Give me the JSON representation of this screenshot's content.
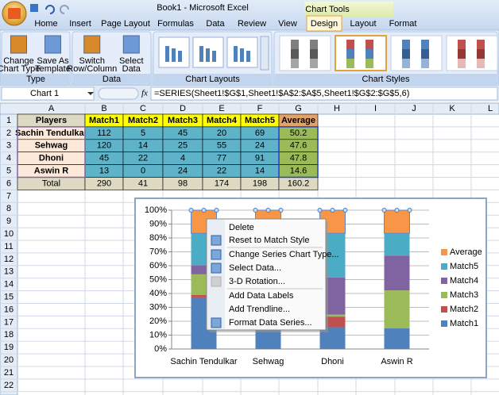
{
  "title_bar": {
    "title": "Book1 - Microsoft Excel",
    "context_tab": "Chart Tools"
  },
  "tabs": [
    "Home",
    "Insert",
    "Page Layout",
    "Formulas",
    "Data",
    "Review",
    "View",
    "Design",
    "Layout",
    "Format"
  ],
  "ribbon": {
    "groups": [
      {
        "label": "Type",
        "buttons": [
          [
            "Change",
            "Chart Type"
          ],
          [
            "Save As",
            "Template"
          ]
        ]
      },
      {
        "label": "Data",
        "buttons": [
          [
            "Switch",
            "Row/Column"
          ],
          [
            "Select",
            "Data"
          ]
        ]
      },
      {
        "label": "Chart Layouts",
        "buttons": []
      },
      {
        "label": "Chart Styles",
        "buttons": []
      }
    ]
  },
  "formula_bar": {
    "name_box": "Chart 1",
    "fx": "fx",
    "formula": "=SERIES(Sheet1!$G$1,Sheet1!$A$2:$A$5,Sheet1!$G$2:$G$5,6)"
  },
  "sheet": {
    "columns": [
      "A",
      "B",
      "C",
      "D",
      "E",
      "F",
      "G",
      "H",
      "I",
      "J",
      "K",
      "L"
    ],
    "rows": [
      1,
      2,
      3,
      4,
      5,
      6,
      7,
      8,
      9,
      10,
      11,
      12,
      13,
      14,
      15,
      16,
      17,
      18,
      19,
      20,
      21,
      22
    ],
    "table": {
      "header": [
        "Players",
        "Match1",
        "Match2",
        "Match3",
        "Match4",
        "Match5",
        "Average"
      ],
      "rows": [
        [
          "Sachin Tendulkar",
          112,
          5,
          45,
          20,
          69,
          50.2
        ],
        [
          "Sehwag",
          120,
          14,
          25,
          55,
          24,
          47.6
        ],
        [
          "Dhoni",
          45,
          22,
          4,
          77,
          91,
          47.8
        ],
        [
          "Aswin R",
          13,
          0,
          24,
          22,
          14,
          14.6
        ]
      ],
      "total": [
        "Total",
        290,
        41,
        98,
        174,
        198,
        160.2
      ]
    }
  },
  "chart_data": {
    "type": "bar",
    "stacking": "percent",
    "categories": [
      "Sachin Tendulkar",
      "Sehwag",
      "Dhoni",
      "Aswin R"
    ],
    "series": [
      {
        "name": "Match1",
        "color": "#4f81bd",
        "values": [
          112,
          120,
          45,
          13
        ]
      },
      {
        "name": "Match2",
        "color": "#c0504d",
        "values": [
          5,
          14,
          22,
          0
        ]
      },
      {
        "name": "Match3",
        "color": "#9bbb59",
        "values": [
          45,
          25,
          4,
          24
        ]
      },
      {
        "name": "Match4",
        "color": "#8064a2",
        "values": [
          20,
          55,
          77,
          22
        ]
      },
      {
        "name": "Match5",
        "color": "#4bacc6",
        "values": [
          69,
          24,
          91,
          14
        ]
      },
      {
        "name": "Average",
        "color": "#f79646",
        "values": [
          50.2,
          47.6,
          47.8,
          14.6
        ]
      }
    ],
    "ylim": [
      0,
      100
    ],
    "yticks": [
      {
        "value": 0,
        "label": "0%"
      },
      {
        "value": 10,
        "label": "10%"
      },
      {
        "value": 20,
        "label": "20%"
      },
      {
        "value": 30,
        "label": "30%"
      },
      {
        "value": 40,
        "label": "40%"
      },
      {
        "value": 50,
        "label": "50%"
      },
      {
        "value": 60,
        "label": "60%"
      },
      {
        "value": 70,
        "label": "70%"
      },
      {
        "value": 80,
        "label": "80%"
      },
      {
        "value": 90,
        "label": "90%"
      },
      {
        "value": 100,
        "label": "100%"
      }
    ],
    "grid": true,
    "legend": "right"
  },
  "context_menu": {
    "items": [
      {
        "label": "Delete",
        "enabled": true
      },
      {
        "label": "Reset to Match Style",
        "enabled": true
      },
      {
        "label": "Change Series Chart Type...",
        "enabled": true
      },
      {
        "label": "Select Data...",
        "enabled": true
      },
      {
        "label": "3-D Rotation...",
        "enabled": false
      },
      {
        "label": "Add Data Labels",
        "enabled": true
      },
      {
        "label": "Add Trendline...",
        "enabled": false
      },
      {
        "label": "Format Data Series...",
        "enabled": true
      }
    ]
  }
}
